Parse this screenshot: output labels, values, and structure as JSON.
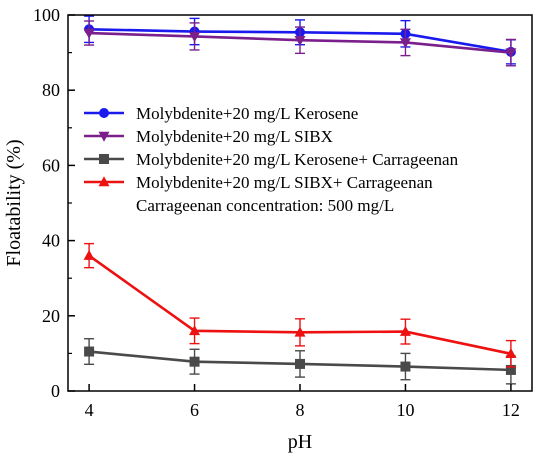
{
  "chart_data": {
    "type": "line",
    "title": "",
    "xlabel": "pH",
    "ylabel": "Floatability (%)",
    "x": [
      4,
      6,
      8,
      10,
      12
    ],
    "xlim": [
      3.6,
      12.4
    ],
    "ylim": [
      0,
      100
    ],
    "xticks": [
      4,
      6,
      8,
      10,
      12
    ],
    "yticks": [
      0,
      20,
      40,
      60,
      80,
      100
    ],
    "legend_position": "center-right",
    "annotation": "Carrageenan concentration: 500 mg/L",
    "series": [
      {
        "name": "Molybdenite+20 mg/L Kerosene",
        "color": "#1a1aee",
        "marker": "circle",
        "values": [
          96.2,
          95.6,
          95.4,
          95.0,
          90.2
        ],
        "errors": [
          3.5,
          3.5,
          3.3,
          3.5,
          3.2
        ]
      },
      {
        "name": "Molybdenite+20 mg/L SIBX",
        "color": "#7a1f8c",
        "marker": "triangle-down",
        "values": [
          95.2,
          94.3,
          93.3,
          92.7,
          90.0
        ],
        "errors": [
          3.2,
          3.6,
          3.5,
          3.5,
          3.5
        ]
      },
      {
        "name": "Molybdenite+20 mg/L Kerosene+ Carrageenan",
        "color": "#4a4a4a",
        "marker": "square",
        "values": [
          10.5,
          7.8,
          7.2,
          6.5,
          5.6
        ],
        "errors": [
          3.4,
          3.3,
          3.5,
          3.5,
          3.7
        ]
      },
      {
        "name": "Molybdenite+20 mg/L SIBX+ Carrageenan",
        "color": "#ee1111",
        "marker": "triangle-up",
        "values": [
          36.0,
          16.0,
          15.6,
          15.8,
          9.9
        ],
        "errors": [
          3.2,
          3.4,
          3.6,
          3.3,
          3.5
        ]
      }
    ]
  }
}
